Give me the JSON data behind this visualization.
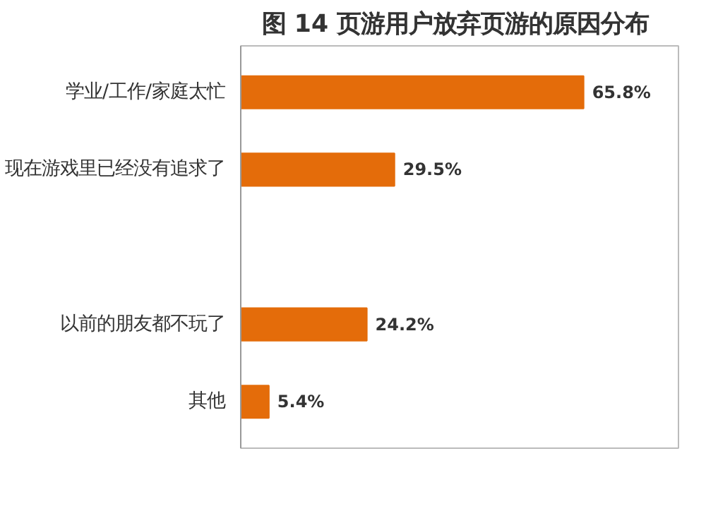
{
  "chart_data": {
    "type": "bar",
    "orientation": "horizontal",
    "title": "图 14  页游用户放弃页游的原因分布",
    "categories": [
      "学业/工作/家庭太忙",
      "现在游戏里已经没有追求了",
      null,
      "以前的朋友都不玩了",
      "其他"
    ],
    "values": [
      65.8,
      29.5,
      null,
      24.2,
      5.4
    ],
    "value_labels": [
      "65.8%",
      "29.5%",
      null,
      "24.2%",
      "5.4%"
    ],
    "color": "#e46c0a",
    "xlim": [
      0,
      84
    ],
    "tick_labels": "y",
    "grid": false
  }
}
